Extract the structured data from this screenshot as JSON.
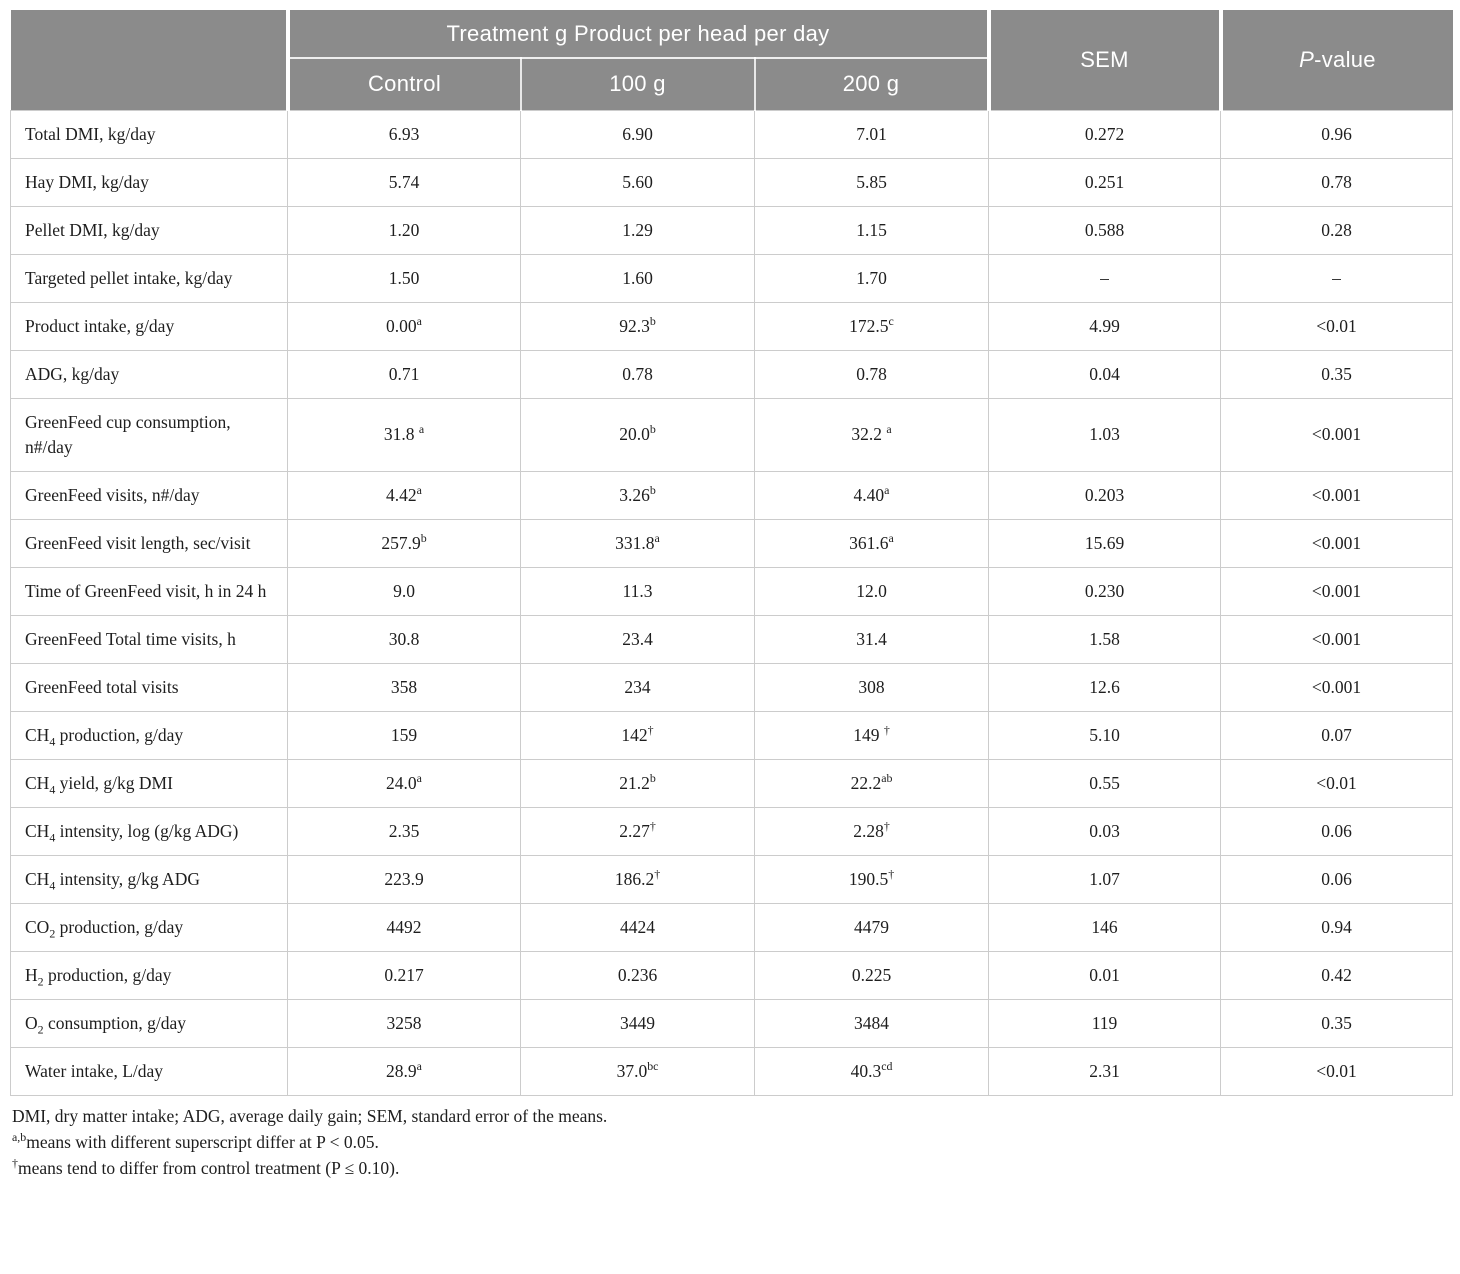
{
  "table": {
    "header": {
      "treatment_group_label": "Treatment g Product per head per day",
      "subcolumns": [
        "Control",
        "100 g",
        "200 g"
      ],
      "sem_label": "SEM",
      "p_value_italic": "P",
      "p_value_rest": "-value"
    },
    "rows": [
      {
        "label": "Total DMI, kg/day",
        "cells": [
          "6.93",
          "6.90",
          "7.01",
          "0.272",
          "0.96"
        ]
      },
      {
        "label": "Hay DMI, kg/day",
        "cells": [
          "5.74",
          "5.60",
          "5.85",
          "0.251",
          "0.78"
        ]
      },
      {
        "label": "Pellet DMI, kg/day",
        "cells": [
          "1.20",
          "1.29",
          "1.15",
          "0.588",
          "0.28"
        ]
      },
      {
        "label": "Targeted pellet intake, kg/day",
        "cells": [
          "1.50",
          "1.60",
          "1.70",
          "–",
          "–"
        ]
      },
      {
        "label": "Product intake, g/day",
        "cells": [
          "0.00^{a}",
          "92.3^{b}",
          "172.5^{c}",
          "4.99",
          "<0.01"
        ]
      },
      {
        "label": "ADG, kg/day",
        "cells": [
          "0.71",
          "0.78",
          "0.78",
          "0.04",
          "0.35"
        ]
      },
      {
        "label": "GreenFeed cup consumption, n#/day",
        "cells": [
          "31.8 ^{a}",
          "20.0^{b}",
          "32.2 ^{a}",
          "1.03",
          "<0.001"
        ]
      },
      {
        "label": "GreenFeed visits, n#/day",
        "cells": [
          "4.42^{a}",
          "3.26^{b}",
          "4.40^{a}",
          "0.203",
          "<0.001"
        ]
      },
      {
        "label": "GreenFeed visit length, sec/visit",
        "cells": [
          "257.9^{b}",
          "331.8^{a}",
          "361.6^{a}",
          "15.69",
          "<0.001"
        ]
      },
      {
        "label": "Time of GreenFeed visit, h in 24 h",
        "cells": [
          "9.0",
          "11.3",
          "12.0",
          "0.230",
          "<0.001"
        ]
      },
      {
        "label": "GreenFeed Total time visits, h",
        "cells": [
          "30.8",
          "23.4",
          "31.4",
          "1.58",
          "<0.001"
        ]
      },
      {
        "label": "GreenFeed total visits",
        "cells": [
          "358",
          "234",
          "308",
          "12.6",
          "<0.001"
        ]
      },
      {
        "label": "CH_{4} production, g/day",
        "cells": [
          "159",
          "142^{†}",
          "149 ^{†}",
          "5.10",
          "0.07"
        ]
      },
      {
        "label": "CH_{4} yield, g/kg DMI",
        "cells": [
          "24.0^{a}",
          "21.2^{b}",
          "22.2^{ab}",
          "0.55",
          "<0.01"
        ]
      },
      {
        "label": "CH_{4} intensity, log (g/kg ADG)",
        "cells": [
          "2.35",
          "2.27^{†}",
          "2.28^{†}",
          "0.03",
          "0.06"
        ]
      },
      {
        "label": "CH_{4} intensity, g/kg ADG",
        "cells": [
          "223.9",
          "186.2^{†}",
          "190.5^{†}",
          "1.07",
          "0.06"
        ]
      },
      {
        "label": "CO_{2} production, g/day",
        "cells": [
          "4492",
          "4424",
          "4479",
          "146",
          "0.94"
        ]
      },
      {
        "label": "H_{2} production, g/day",
        "cells": [
          "0.217",
          "0.236",
          "0.225",
          "0.01",
          "0.42"
        ]
      },
      {
        "label": "O_{2} consumption, g/day",
        "cells": [
          "3258",
          "3449",
          "3484",
          "119",
          "0.35"
        ]
      },
      {
        "label": "Water intake, L/day",
        "cells": [
          "28.9^{a}",
          "37.0^{bc}",
          "40.3^{cd}",
          "2.31",
          "<0.01"
        ]
      }
    ],
    "footnotes": [
      "DMI, dry matter intake; ADG, average daily gain; SEM, standard error of the means.",
      "^{a,b}means with different superscript differ at P < 0.05.",
      "^{†}means tend to differ from control treatment (P ≤ 0.10)."
    ],
    "colors": {
      "header_bg": "#8b8b8b",
      "header_text": "#ffffff",
      "body_text": "#1e1e1e",
      "grid_line": "#cccccc"
    }
  }
}
